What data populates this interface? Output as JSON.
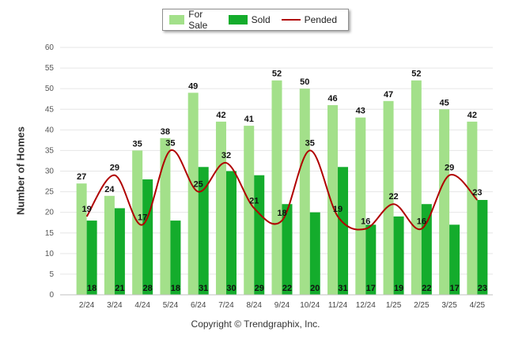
{
  "chart_data": {
    "type": "bar",
    "categories": [
      "2/24",
      "3/24",
      "4/24",
      "5/24",
      "6/24",
      "7/24",
      "8/24",
      "9/24",
      "10/24",
      "11/24",
      "12/24",
      "1/25",
      "2/25",
      "3/25",
      "4/25"
    ],
    "series": [
      {
        "name": "For Sale",
        "type": "bar",
        "color": "#a3e08a",
        "values": [
          27,
          24,
          35,
          38,
          49,
          42,
          41,
          52,
          50,
          46,
          43,
          47,
          52,
          45,
          42
        ]
      },
      {
        "name": "Sold",
        "type": "bar",
        "color": "#14ac2c",
        "values": [
          18,
          21,
          28,
          18,
          31,
          30,
          29,
          22,
          20,
          31,
          17,
          19,
          22,
          17,
          23
        ]
      },
      {
        "name": "Pended",
        "type": "line",
        "color": "#b00000",
        "values": [
          19,
          29,
          17,
          35,
          25,
          32,
          21,
          18,
          35,
          19,
          16,
          22,
          16,
          29,
          23
        ]
      }
    ],
    "ylabel": "Number of Homes",
    "ylim": [
      0,
      60
    ],
    "yticks": [
      0,
      5,
      10,
      15,
      20,
      25,
      30,
      35,
      40,
      45,
      50,
      55,
      60
    ],
    "grid": true,
    "legend_position": "top-center"
  },
  "footer": {
    "copyright": "Copyright © Trendgraphix, Inc."
  }
}
